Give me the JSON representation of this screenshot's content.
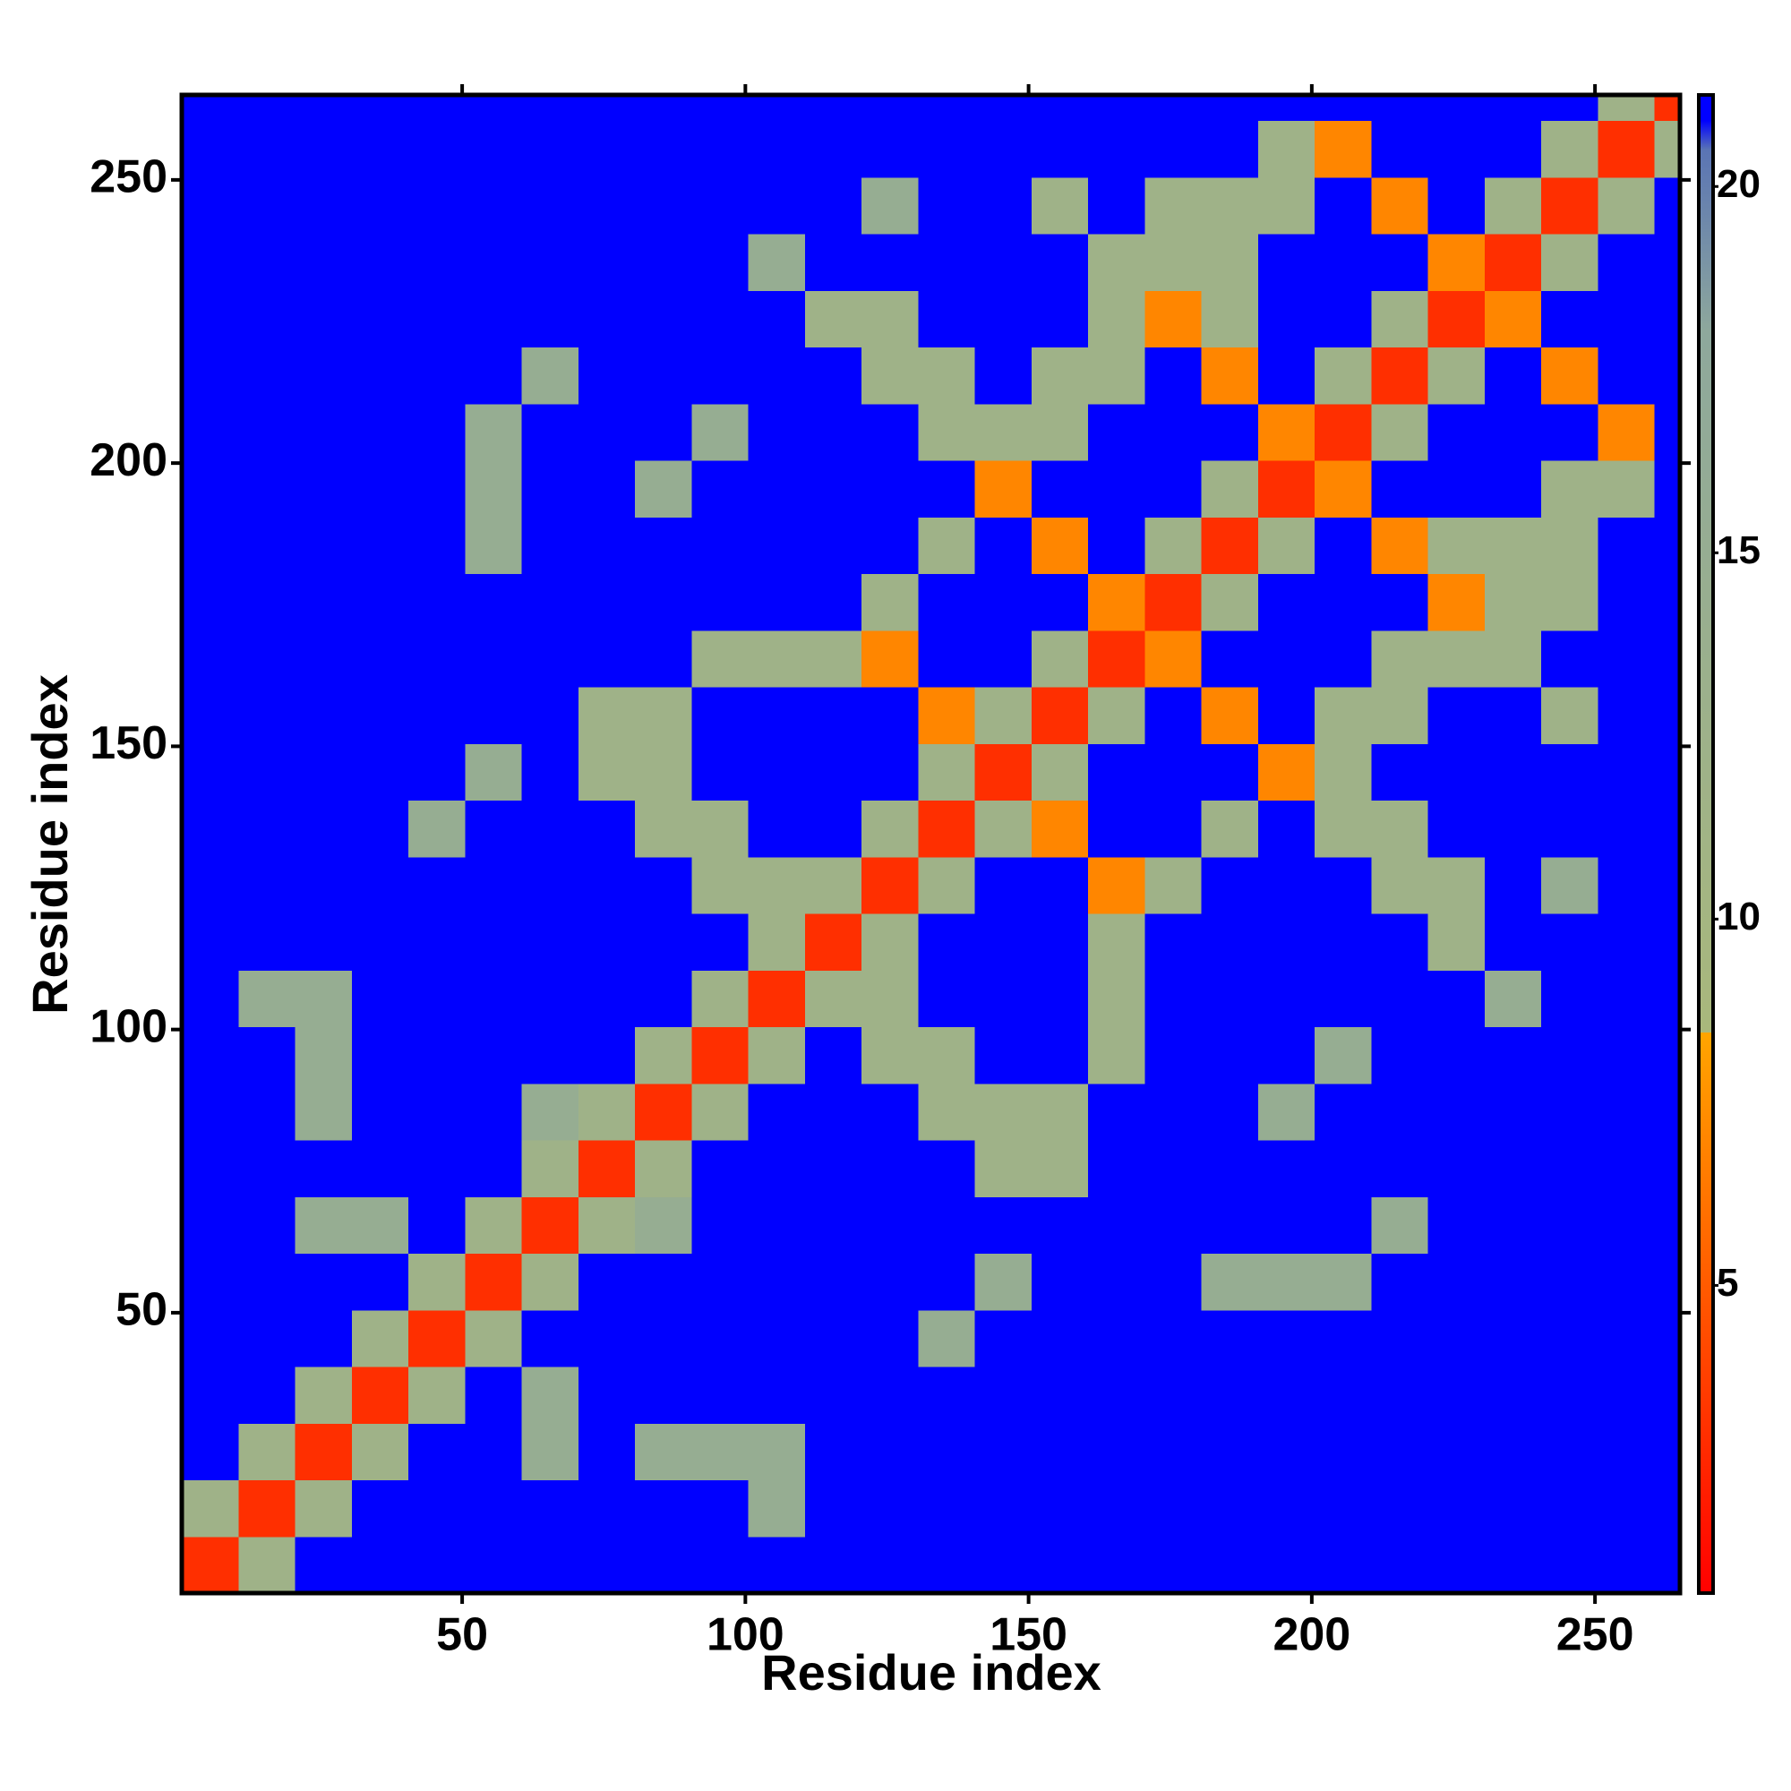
{
  "chart_data": {
    "type": "heatmap",
    "xlabel": "Residue index",
    "ylabel": "Residue index",
    "xlim": [
      0.5,
      265
    ],
    "ylim": [
      0.5,
      265
    ],
    "xticks": [
      50,
      100,
      150,
      200,
      250
    ],
    "yticks": [
      50,
      100,
      150,
      200,
      250
    ],
    "zlim": [
      0.8,
      21.25
    ],
    "zticks": [
      5,
      10,
      15,
      20
    ],
    "colorscale": [
      [
        0.8,
        "#ff0000"
      ],
      [
        8.45,
        "#ffa500"
      ],
      [
        8.45,
        "#a9b87c"
      ],
      [
        18,
        "#8ea89c"
      ],
      [
        20.5,
        "#5a74b4"
      ],
      [
        20.9,
        "#0000ff"
      ],
      [
        21.25,
        "#0000ff"
      ]
    ],
    "xbins": [
      0.5,
      10.5,
      20.5,
      30.5,
      40.5,
      50.5,
      60.5,
      70.5,
      80.5,
      90.5,
      100.5,
      110.5,
      120.5,
      130.5,
      140.5,
      150.5,
      160.5,
      170.5,
      180.5,
      190.5,
      200.5,
      210.5,
      220.5,
      230.5,
      240.5,
      250.5,
      260.5,
      265
    ],
    "ybins": [
      0.5,
      10.5,
      20.5,
      30.5,
      40.5,
      50.5,
      60.5,
      70.5,
      80.5,
      90.5,
      100.5,
      110.5,
      120.5,
      130.5,
      140.5,
      150.5,
      160.5,
      170.5,
      180.5,
      190.5,
      200.5,
      210.5,
      220.5,
      230.5,
      240.5,
      250.5,
      260.5,
      265
    ],
    "z": [
      [
        3,
        12,
        21,
        21,
        21,
        21,
        21,
        21,
        21,
        21,
        21,
        21,
        21,
        21,
        21,
        21,
        21,
        21,
        21,
        21,
        21,
        21,
        21,
        21,
        21,
        21,
        21
      ],
      [
        12,
        3,
        12,
        21,
        21,
        21,
        21,
        21,
        21,
        21,
        15,
        21,
        21,
        21,
        21,
        21,
        21,
        21,
        21,
        21,
        21,
        21,
        21,
        21,
        21,
        21,
        21
      ],
      [
        21,
        12,
        3,
        12,
        21,
        21,
        15,
        21,
        15,
        15,
        15,
        21,
        21,
        21,
        21,
        21,
        21,
        21,
        21,
        21,
        21,
        21,
        21,
        21,
        21,
        21,
        21
      ],
      [
        21,
        21,
        12,
        3,
        12,
        21,
        15,
        21,
        21,
        21,
        21,
        21,
        21,
        21,
        21,
        21,
        21,
        21,
        21,
        21,
        21,
        21,
        21,
        21,
        21,
        21,
        21
      ],
      [
        21,
        21,
        21,
        12,
        3,
        12,
        21,
        21,
        21,
        21,
        21,
        21,
        21,
        15,
        21,
        21,
        21,
        21,
        21,
        21,
        21,
        21,
        21,
        21,
        21,
        21,
        21
      ],
      [
        21,
        21,
        21,
        21,
        12,
        3,
        12,
        21,
        21,
        21,
        21,
        21,
        21,
        21,
        15,
        21,
        21,
        21,
        15,
        15,
        15,
        21,
        21,
        21,
        21,
        21,
        21
      ],
      [
        21,
        21,
        15,
        15,
        21,
        12,
        3,
        12,
        15,
        21,
        21,
        21,
        21,
        21,
        21,
        21,
        21,
        21,
        21,
        21,
        21,
        15,
        21,
        21,
        21,
        21,
        21
      ],
      [
        21,
        21,
        21,
        21,
        21,
        21,
        12,
        3,
        12,
        21,
        21,
        21,
        21,
        21,
        12,
        12,
        21,
        21,
        21,
        21,
        21,
        21,
        21,
        21,
        21,
        21,
        21
      ],
      [
        21,
        21,
        15,
        21,
        21,
        21,
        15,
        12,
        3,
        12,
        21,
        21,
        21,
        12,
        12,
        12,
        21,
        21,
        21,
        15,
        21,
        21,
        21,
        21,
        21,
        21,
        21
      ],
      [
        21,
        21,
        15,
        21,
        21,
        21,
        21,
        21,
        12,
        3,
        12,
        21,
        12,
        12,
        21,
        21,
        12,
        21,
        21,
        21,
        15,
        21,
        21,
        21,
        21,
        21,
        21
      ],
      [
        21,
        15,
        15,
        21,
        21,
        21,
        21,
        21,
        21,
        12,
        3,
        12,
        12,
        21,
        21,
        21,
        12,
        21,
        21,
        21,
        21,
        21,
        21,
        15,
        21,
        21,
        21
      ],
      [
        21,
        21,
        21,
        21,
        21,
        21,
        21,
        21,
        21,
        21,
        12,
        3,
        12,
        21,
        21,
        21,
        12,
        21,
        21,
        21,
        21,
        21,
        12,
        21,
        21,
        21,
        21
      ],
      [
        21,
        21,
        21,
        21,
        21,
        21,
        21,
        21,
        21,
        12,
        12,
        12,
        3,
        12,
        21,
        21,
        7,
        12,
        21,
        21,
        21,
        12,
        12,
        21,
        15,
        21,
        21
      ],
      [
        21,
        21,
        21,
        21,
        15,
        21,
        21,
        21,
        12,
        12,
        21,
        21,
        12,
        3,
        12,
        7,
        21,
        21,
        12,
        21,
        12,
        12,
        21,
        21,
        21,
        21,
        21
      ],
      [
        21,
        21,
        21,
        21,
        21,
        15,
        21,
        12,
        12,
        21,
        21,
        21,
        21,
        12,
        3,
        12,
        21,
        21,
        21,
        7,
        12,
        21,
        21,
        21,
        21,
        21,
        21
      ],
      [
        21,
        21,
        21,
        21,
        21,
        21,
        21,
        12,
        12,
        21,
        21,
        21,
        21,
        7,
        12,
        3,
        12,
        21,
        7,
        21,
        12,
        12,
        21,
        21,
        12,
        21,
        21
      ],
      [
        21,
        21,
        21,
        21,
        21,
        21,
        21,
        21,
        21,
        12,
        12,
        12,
        7,
        21,
        21,
        12,
        3,
        7,
        21,
        21,
        21,
        12,
        12,
        12,
        21,
        21,
        21
      ],
      [
        21,
        21,
        21,
        21,
        21,
        21,
        21,
        21,
        21,
        21,
        21,
        21,
        12,
        21,
        21,
        21,
        7,
        3,
        12,
        21,
        21,
        21,
        7,
        12,
        12,
        21,
        21
      ],
      [
        21,
        21,
        21,
        21,
        21,
        15,
        21,
        21,
        21,
        21,
        21,
        21,
        21,
        12,
        21,
        7,
        21,
        12,
        3,
        12,
        21,
        7,
        12,
        12,
        12,
        21,
        21
      ],
      [
        21,
        21,
        21,
        21,
        21,
        15,
        21,
        21,
        15,
        21,
        21,
        21,
        21,
        21,
        7,
        21,
        21,
        21,
        12,
        3,
        7,
        21,
        21,
        21,
        12,
        12,
        21
      ],
      [
        21,
        21,
        21,
        21,
        21,
        15,
        21,
        21,
        21,
        15,
        21,
        21,
        21,
        12,
        12,
        12,
        21,
        21,
        21,
        7,
        3,
        12,
        21,
        21,
        21,
        7,
        21
      ],
      [
        21,
        21,
        21,
        21,
        21,
        21,
        15,
        21,
        21,
        21,
        21,
        21,
        12,
        12,
        21,
        12,
        12,
        21,
        7,
        21,
        12,
        3,
        12,
        21,
        7,
        21,
        21
      ],
      [
        21,
        21,
        21,
        21,
        21,
        21,
        21,
        21,
        21,
        21,
        21,
        12,
        12,
        21,
        21,
        21,
        12,
        7,
        12,
        21,
        21,
        12,
        3,
        7,
        21,
        21,
        21
      ],
      [
        21,
        21,
        21,
        21,
        21,
        21,
        21,
        21,
        21,
        21,
        15,
        21,
        21,
        21,
        21,
        21,
        12,
        12,
        12,
        21,
        21,
        21,
        7,
        3,
        12,
        21,
        21
      ],
      [
        21,
        21,
        21,
        21,
        21,
        21,
        21,
        21,
        21,
        21,
        21,
        21,
        15,
        21,
        21,
        12,
        21,
        12,
        12,
        12,
        21,
        7,
        21,
        12,
        3,
        12,
        21
      ],
      [
        21,
        21,
        21,
        21,
        21,
        21,
        21,
        21,
        21,
        21,
        21,
        21,
        21,
        21,
        21,
        21,
        21,
        21,
        21,
        12,
        7,
        21,
        21,
        21,
        12,
        3,
        12
      ],
      [
        21,
        21,
        21,
        21,
        21,
        21,
        21,
        21,
        21,
        21,
        21,
        21,
        21,
        21,
        21,
        21,
        21,
        21,
        21,
        21,
        21,
        21,
        21,
        21,
        21,
        12,
        3
      ]
    ]
  }
}
